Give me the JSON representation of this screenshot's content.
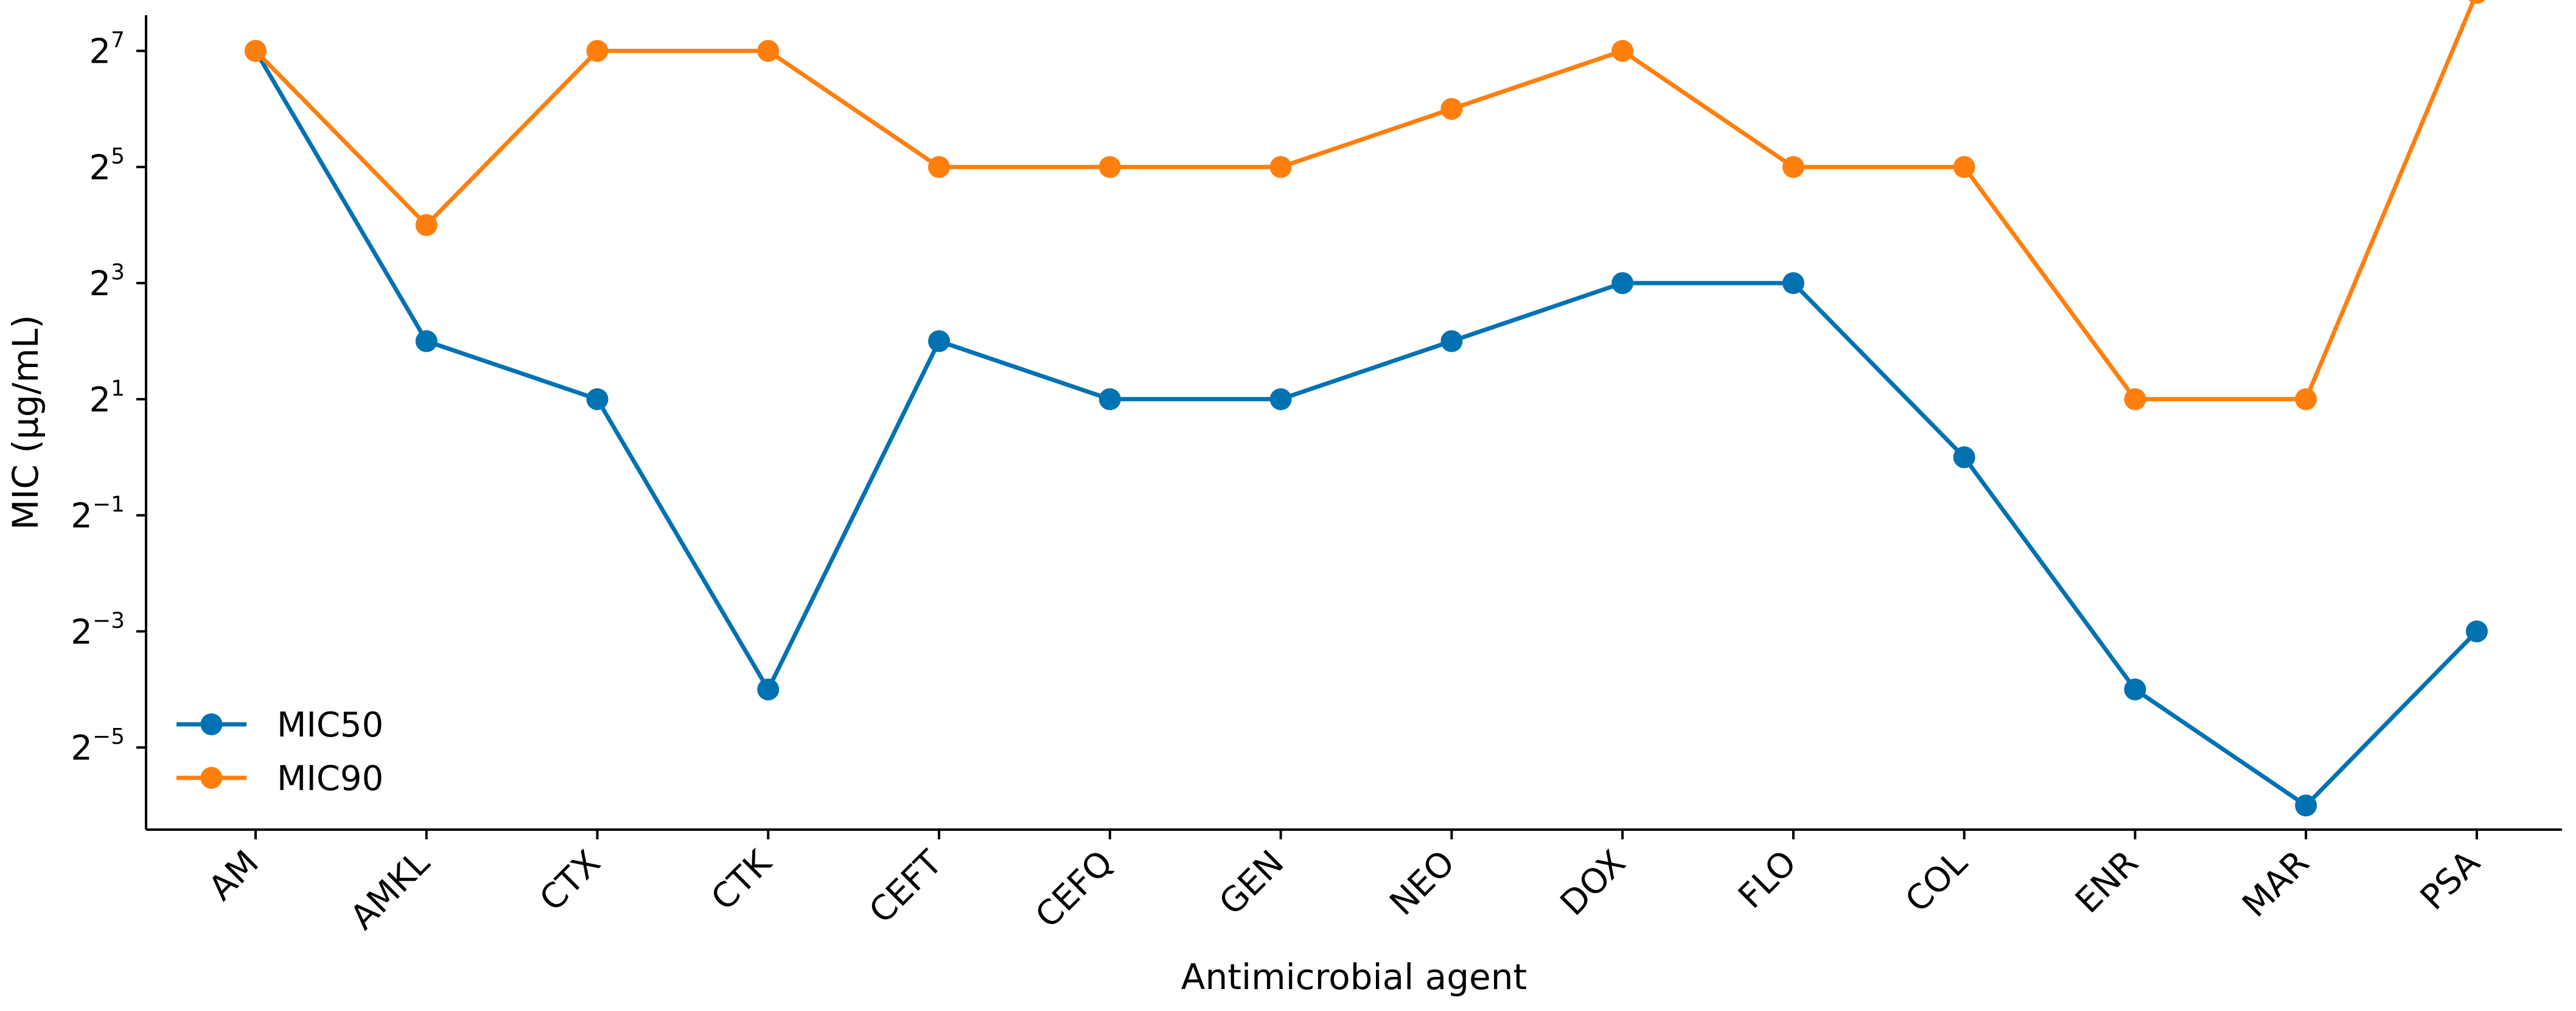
{
  "chart_data": {
    "type": "line",
    "xlabel": "Antimicrobial agent",
    "ylabel": "MIC (µg/mL)",
    "categories": [
      "AM",
      "AMKL",
      "CTX",
      "CTK",
      "CEFT",
      "CEFQ",
      "GEN",
      "NEO",
      "DOX",
      "FLO",
      "COL",
      "ENR",
      "MAR",
      "PSA"
    ],
    "y_scale": "log2",
    "y_ticks": [
      {
        "base": "2",
        "exp": "−5",
        "value": 0.03125
      },
      {
        "base": "2",
        "exp": "−3",
        "value": 0.125
      },
      {
        "base": "2",
        "exp": "−1",
        "value": 0.5
      },
      {
        "base": "2",
        "exp": "1",
        "value": 2
      },
      {
        "base": "2",
        "exp": "3",
        "value": 8
      },
      {
        "base": "2",
        "exp": "5",
        "value": 32
      },
      {
        "base": "2",
        "exp": "7",
        "value": 128
      }
    ],
    "ylim": [
      0.01172,
      196
    ],
    "series": [
      {
        "name": "MIC50",
        "color": "#0072B2",
        "values": [
          128,
          4,
          2,
          0.0625,
          4,
          2,
          2,
          4,
          8,
          8,
          1,
          0.0625,
          0.015625,
          0.125
        ]
      },
      {
        "name": "MIC90",
        "color": "#FF7F0E",
        "values": [
          128,
          16,
          128,
          128,
          32,
          32,
          32,
          64,
          128,
          32,
          32,
          2,
          2,
          256
        ]
      }
    ],
    "legend_position": "lower-left",
    "grid": false
  }
}
